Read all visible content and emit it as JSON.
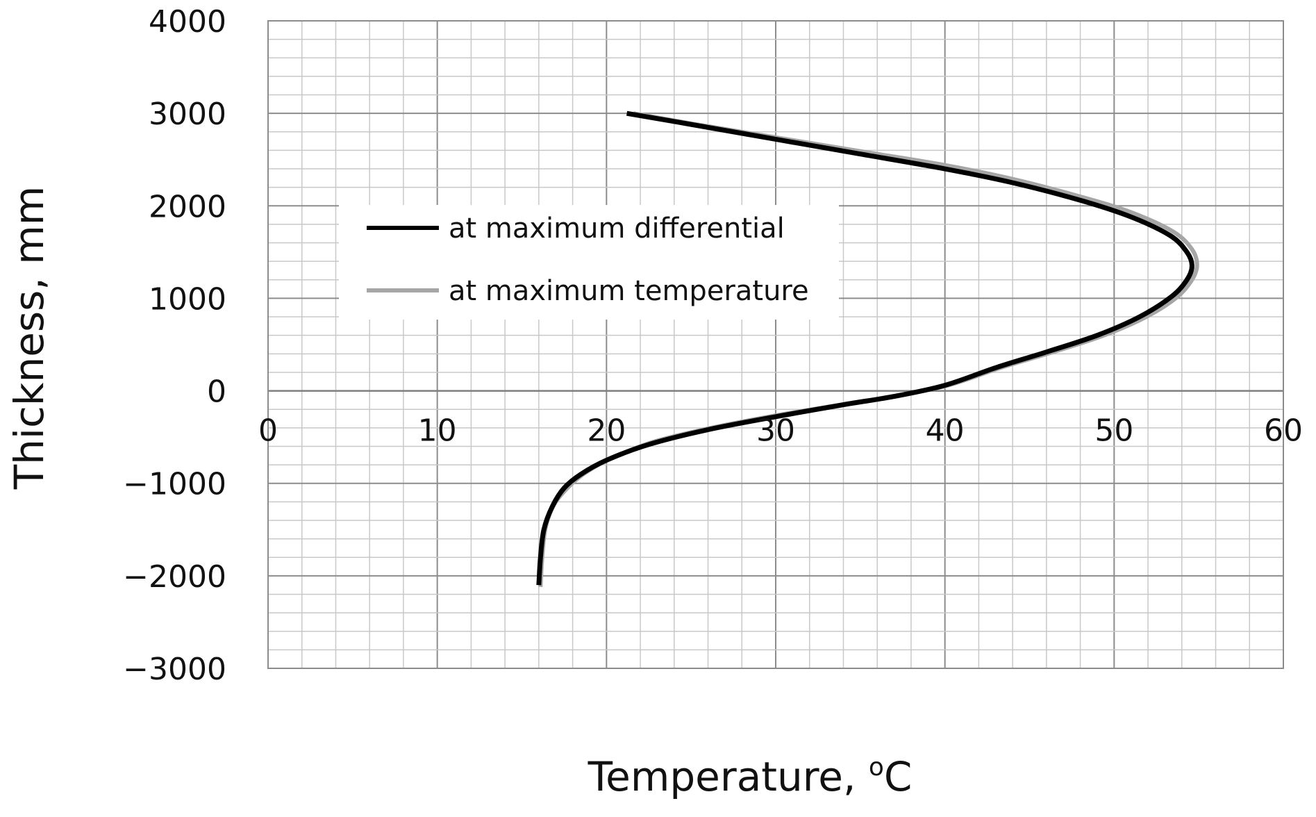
{
  "chart_data": {
    "type": "line",
    "title": "",
    "xlabel": "Temperature, ",
    "xlabel_superscript": "o",
    "xlabel_unit": "C",
    "ylabel": "Thickness, mm",
    "xlim": [
      0,
      60
    ],
    "ylim": [
      -3000,
      4000
    ],
    "x_ticks": [
      "0",
      "10",
      "20",
      "30",
      "40",
      "50",
      "60"
    ],
    "y_ticks": [
      "4000",
      "3000",
      "2000",
      "1000",
      "0",
      "−1000",
      "−2000",
      "−3000"
    ],
    "grid": true,
    "legend_position": "upper-middle",
    "series": [
      {
        "name": "at maximum differential",
        "color": "#000000",
        "points": [
          [
            21.2,
            3000
          ],
          [
            25.0,
            2880
          ],
          [
            30.0,
            2720
          ],
          [
            35.0,
            2560
          ],
          [
            40.0,
            2400
          ],
          [
            44.0,
            2250
          ],
          [
            48.0,
            2060
          ],
          [
            51.0,
            1880
          ],
          [
            53.3,
            1680
          ],
          [
            54.3,
            1500
          ],
          [
            54.6,
            1350
          ],
          [
            54.3,
            1200
          ],
          [
            53.4,
            1020
          ],
          [
            51.5,
            800
          ],
          [
            49.0,
            600
          ],
          [
            46.0,
            420
          ],
          [
            43.0,
            250
          ],
          [
            40.0,
            60
          ],
          [
            37.0,
            -60
          ],
          [
            34.0,
            -150
          ],
          [
            30.0,
            -280
          ],
          [
            26.0,
            -420
          ],
          [
            22.5,
            -580
          ],
          [
            20.0,
            -750
          ],
          [
            18.5,
            -900
          ],
          [
            17.5,
            -1050
          ],
          [
            16.8,
            -1250
          ],
          [
            16.3,
            -1500
          ],
          [
            16.1,
            -1800
          ],
          [
            16.0,
            -2100
          ]
        ]
      },
      {
        "name": "at maximum temperature",
        "color": "#a6a6a6",
        "points": [
          [
            21.6,
            3000
          ],
          [
            25.0,
            2890
          ],
          [
            30.0,
            2740
          ],
          [
            35.0,
            2590
          ],
          [
            40.0,
            2440
          ],
          [
            44.0,
            2290
          ],
          [
            48.0,
            2100
          ],
          [
            51.0,
            1930
          ],
          [
            53.5,
            1720
          ],
          [
            54.6,
            1530
          ],
          [
            54.9,
            1360
          ],
          [
            54.6,
            1200
          ],
          [
            53.7,
            1010
          ],
          [
            51.9,
            800
          ],
          [
            49.4,
            600
          ],
          [
            46.4,
            420
          ],
          [
            43.3,
            250
          ],
          [
            40.2,
            60
          ],
          [
            37.2,
            -50
          ],
          [
            34.2,
            -140
          ],
          [
            30.2,
            -260
          ],
          [
            26.2,
            -400
          ],
          [
            22.8,
            -550
          ],
          [
            20.4,
            -720
          ],
          [
            18.8,
            -880
          ],
          [
            17.8,
            -1030
          ],
          [
            16.9,
            -1230
          ],
          [
            16.4,
            -1480
          ],
          [
            16.2,
            -1800
          ],
          [
            16.1,
            -2120
          ]
        ]
      }
    ]
  }
}
